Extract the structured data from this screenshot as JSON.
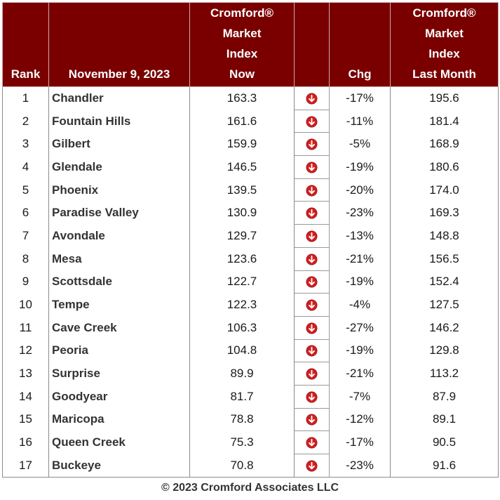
{
  "table": {
    "headers": {
      "rank": "Rank",
      "date": "November 9, 2023",
      "now": [
        "Cromford®",
        "Market",
        "Index",
        "Now"
      ],
      "chg": "Chg",
      "last": [
        "Cromford®",
        "Market",
        "Index",
        "Last Month"
      ]
    },
    "arrow_icon": "down-arrow-circle-icon",
    "arrow_color": "#d21f1f",
    "rows": [
      {
        "rank": "1",
        "city": "Chandler",
        "now": "163.3",
        "chg": "-17%",
        "last": "195.6"
      },
      {
        "rank": "2",
        "city": "Fountain Hills",
        "now": "161.6",
        "chg": "-11%",
        "last": "181.4"
      },
      {
        "rank": "3",
        "city": "Gilbert",
        "now": "159.9",
        "chg": "-5%",
        "last": "168.9"
      },
      {
        "rank": "4",
        "city": "Glendale",
        "now": "146.5",
        "chg": "-19%",
        "last": "180.6"
      },
      {
        "rank": "5",
        "city": "Phoenix",
        "now": "139.5",
        "chg": "-20%",
        "last": "174.0"
      },
      {
        "rank": "6",
        "city": "Paradise Valley",
        "now": "130.9",
        "chg": "-23%",
        "last": "169.3"
      },
      {
        "rank": "7",
        "city": "Avondale",
        "now": "129.7",
        "chg": "-13%",
        "last": "148.8"
      },
      {
        "rank": "8",
        "city": "Mesa",
        "now": "123.6",
        "chg": "-21%",
        "last": "156.5"
      },
      {
        "rank": "9",
        "city": "Scottsdale",
        "now": "122.7",
        "chg": "-19%",
        "last": "152.4"
      },
      {
        "rank": "10",
        "city": "Tempe",
        "now": "122.3",
        "chg": "-4%",
        "last": "127.5"
      },
      {
        "rank": "11",
        "city": "Cave Creek",
        "now": "106.3",
        "chg": "-27%",
        "last": "146.2"
      },
      {
        "rank": "12",
        "city": "Peoria",
        "now": "104.8",
        "chg": "-19%",
        "last": "129.8"
      },
      {
        "rank": "13",
        "city": "Surprise",
        "now": "89.9",
        "chg": "-21%",
        "last": "113.2"
      },
      {
        "rank": "14",
        "city": "Goodyear",
        "now": "81.7",
        "chg": "-7%",
        "last": "87.9"
      },
      {
        "rank": "15",
        "city": "Maricopa",
        "now": "78.8",
        "chg": "-12%",
        "last": "89.1"
      },
      {
        "rank": "16",
        "city": "Queen Creek",
        "now": "75.3",
        "chg": "-17%",
        "last": "90.5"
      },
      {
        "rank": "17",
        "city": "Buckeye",
        "now": "70.8",
        "chg": "-23%",
        "last": "91.6"
      }
    ]
  },
  "footer": "© 2023 Cromford Associates LLC",
  "colors": {
    "header_bg": "#7a0000",
    "header_text": "#ffffff"
  }
}
